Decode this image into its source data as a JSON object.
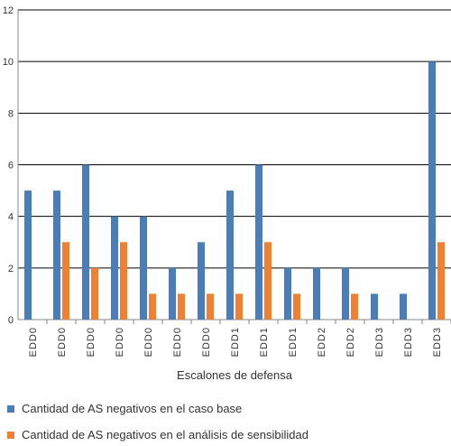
{
  "chart_data": {
    "type": "bar",
    "categories": [
      "EDD0",
      "EDD0",
      "EDD0",
      "EDD0",
      "EDD0",
      "EDD0",
      "EDD0",
      "EDD1",
      "EDD1",
      "EDD1",
      "EDD2",
      "EDD2",
      "EDD3",
      "EDD3",
      "EDD3"
    ],
    "series": [
      {
        "name": "Cantidad de AS negativos en el caso base",
        "color": "#4a7ebb",
        "values": [
          5,
          5,
          6,
          4,
          4,
          2,
          3,
          5,
          6,
          2,
          2,
          2,
          1,
          1,
          10
        ]
      },
      {
        "name": "Cantidad de AS negativos en el análisis de sensibilidad",
        "color": "#f07f31",
        "values": [
          0,
          3,
          2,
          3,
          1,
          1,
          1,
          1,
          3,
          1,
          0,
          1,
          0,
          0,
          3
        ]
      }
    ],
    "title": "",
    "xlabel": "Escalones de defensa",
    "ylabel": "",
    "ylim": [
      0,
      12
    ],
    "yticks": [
      0,
      2,
      4,
      6,
      8,
      10,
      12
    ],
    "grid": true,
    "legend": "bottom"
  }
}
